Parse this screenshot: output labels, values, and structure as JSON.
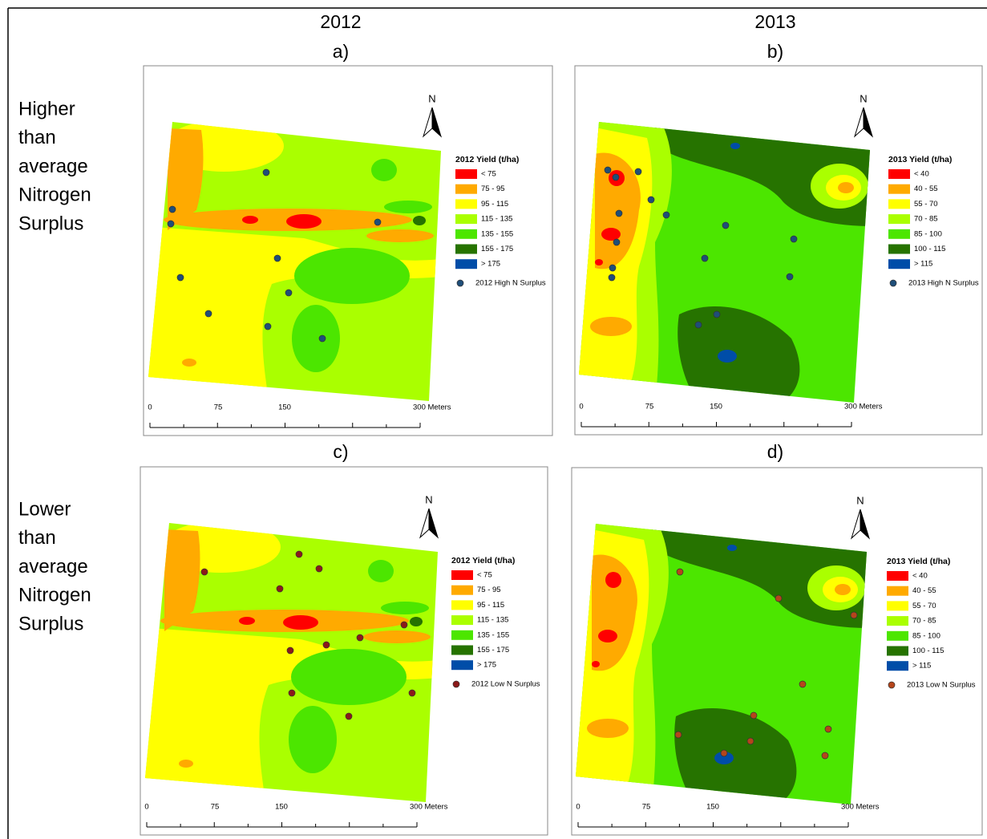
{
  "column_headers": [
    "2012",
    "2013"
  ],
  "row_headers": [
    [
      "Higher",
      "than",
      "average",
      "Nitrogen",
      "Surplus"
    ],
    [
      "Lower",
      "than",
      "average",
      "Nitrogen",
      "Surplus"
    ]
  ],
  "panels": [
    {
      "label": "a)",
      "north": "N",
      "scale_labels": [
        "0",
        "75",
        "150",
        "300 Meters"
      ],
      "legend": {
        "title": "2012 Yield (t/ha)",
        "items": [
          {
            "label": "< 75",
            "color": "#ff0000"
          },
          {
            "label": "75 - 95",
            "color": "#ffaa00"
          },
          {
            "label": "95 - 115",
            "color": "#ffff00"
          },
          {
            "label": "115 - 135",
            "color": "#aaff00"
          },
          {
            "label": "135 - 155",
            "color": "#4ce600"
          },
          {
            "label": "155 - 175",
            "color": "#267300"
          },
          {
            "label": "> 175",
            "color": "#004da8"
          }
        ]
      },
      "points_legend": {
        "label": "2012 High N Surplus",
        "color": "#1f4e79"
      }
    },
    {
      "label": "b)",
      "north": "N",
      "scale_labels": [
        "0",
        "75",
        "150",
        "300 Meters"
      ],
      "legend": {
        "title": "2013 Yield (t/ha)",
        "items": [
          {
            "label": "< 40",
            "color": "#ff0000"
          },
          {
            "label": "40 - 55",
            "color": "#ffaa00"
          },
          {
            "label": "55 - 70",
            "color": "#ffff00"
          },
          {
            "label": "70 - 85",
            "color": "#aaff00"
          },
          {
            "label": "85 - 100",
            "color": "#4ce600"
          },
          {
            "label": "100 - 115",
            "color": "#267300"
          },
          {
            "label": "> 115",
            "color": "#004da8"
          }
        ]
      },
      "points_legend": {
        "label": "2013 High N Surplus",
        "color": "#1f4e79"
      }
    },
    {
      "label": "c)",
      "north": "N",
      "scale_labels": [
        "0",
        "75",
        "150",
        "300 Meters"
      ],
      "legend": {
        "title": "2012 Yield (t/ha)",
        "items": [
          {
            "label": "< 75",
            "color": "#ff0000"
          },
          {
            "label": "75 - 95",
            "color": "#ffaa00"
          },
          {
            "label": "95 - 115",
            "color": "#ffff00"
          },
          {
            "label": "115 - 135",
            "color": "#aaff00"
          },
          {
            "label": "135 - 155",
            "color": "#4ce600"
          },
          {
            "label": "155 - 175",
            "color": "#267300"
          },
          {
            "label": "> 175",
            "color": "#004da8"
          }
        ]
      },
      "points_legend": {
        "label": "2012 Low N Surplus",
        "color": "#8b1a1a"
      }
    },
    {
      "label": "d)",
      "north": "N",
      "scale_labels": [
        "0",
        "75",
        "150",
        "300 Meters"
      ],
      "legend": {
        "title": "2013 Yield (t/ha)",
        "items": [
          {
            "label": "< 40",
            "color": "#ff0000"
          },
          {
            "label": "40 - 55",
            "color": "#ffaa00"
          },
          {
            "label": "55 - 70",
            "color": "#ffff00"
          },
          {
            "label": "70 - 85",
            "color": "#aaff00"
          },
          {
            "label": "85 - 100",
            "color": "#4ce600"
          },
          {
            "label": "100 - 115",
            "color": "#267300"
          },
          {
            "label": "> 115",
            "color": "#004da8"
          }
        ]
      },
      "points_legend": {
        "label": "2013 Low N Surplus",
        "color": "#b5451b"
      }
    }
  ]
}
